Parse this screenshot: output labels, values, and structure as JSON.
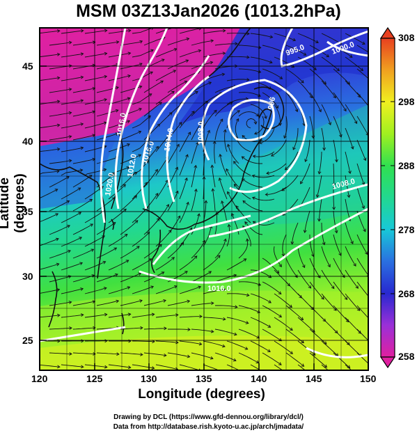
{
  "title": "MSM 03Z13Jan2026 (1013.2hPa)",
  "axes": {
    "xlabel": "Longitude (degrees)",
    "ylabel": "Latitude  (degrees)",
    "xticks": [
      "120",
      "125",
      "130",
      "135",
      "140",
      "145",
      "150"
    ],
    "yticks": [
      "45",
      "40",
      "35",
      "30",
      "25"
    ]
  },
  "colorbar": {
    "ticks": [
      "308",
      "298",
      "288",
      "278",
      "268",
      "258"
    ],
    "stops": [
      "#e8208c",
      "#b030c8",
      "#3020d0",
      "#1a5ae0",
      "#18c8d8",
      "#20d890",
      "#30e050",
      "#a0f020",
      "#f0f020",
      "#f0a020",
      "#e84020"
    ]
  },
  "isobars": {
    "labels": [
      "995.0",
      "1000.0",
      "996",
      "1008.0",
      "1004.0",
      "1016.0",
      "1012.0",
      "1020.0",
      "1016.0",
      "1008.0",
      "1016.0"
    ]
  },
  "credits": {
    "line1": "Drawing by DCL (https://www.gfd-dennou.org/library/dcl/)",
    "line2": "Data from http://database.rish.kyoto-u.ac.jp/arch/jmadata/"
  }
}
